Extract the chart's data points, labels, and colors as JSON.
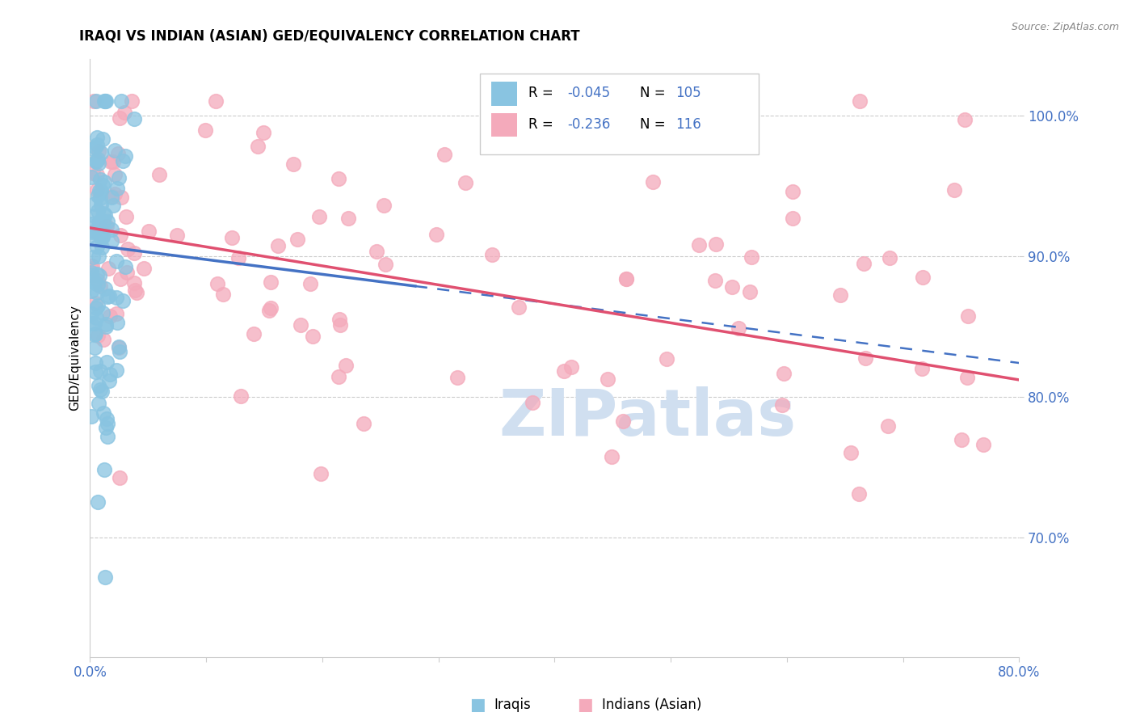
{
  "title": "IRAQI VS INDIAN (ASIAN) GED/EQUIVALENCY CORRELATION CHART",
  "source": "Source: ZipAtlas.com",
  "ylabel": "GED/Equivalency",
  "xlim": [
    0.0,
    0.8
  ],
  "ylim": [
    0.615,
    1.04
  ],
  "y_ticks": [
    0.7,
    0.8,
    0.9,
    1.0
  ],
  "y_tick_labels": [
    "70.0%",
    "80.0%",
    "90.0%",
    "100.0%"
  ],
  "blue_color": "#89C4E1",
  "pink_color": "#F4AABB",
  "trend_blue_solid": "#4472C4",
  "trend_pink_solid": "#E05070",
  "watermark": "ZIPatlas",
  "watermark_color": "#D0DFF0",
  "r_blue": -0.045,
  "n_blue": 105,
  "r_pink": -0.236,
  "n_pink": 116,
  "blue_intercept": 0.908,
  "blue_slope": -0.105,
  "pink_intercept": 0.92,
  "pink_slope": -0.135
}
